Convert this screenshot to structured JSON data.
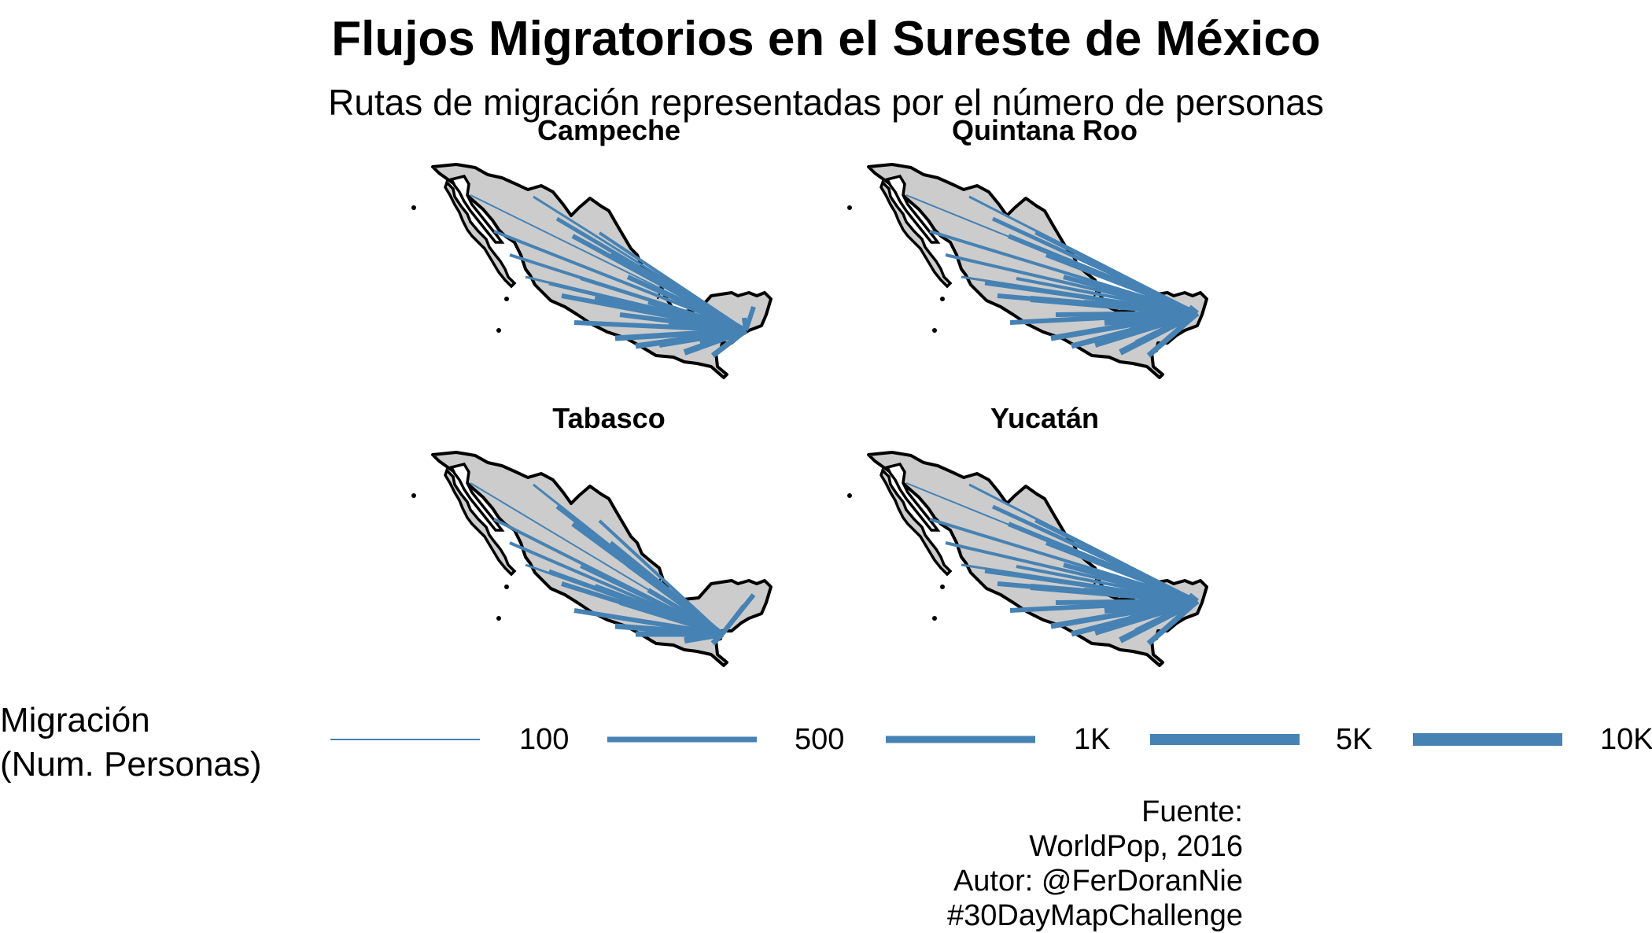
{
  "title": "Flujos Migratorios en el Sureste de México",
  "subtitle": "Rutas de migración representadas por el número de personas",
  "colors": {
    "flow": "#4682B4",
    "land": "#CCCCCC",
    "border": "#000000",
    "background": "#FFFFFF"
  },
  "panels": [
    {
      "name": "Campeche",
      "destination": "Campeche"
    },
    {
      "name": "Quintana Roo",
      "destination": "Quintana Roo"
    },
    {
      "name": "Tabasco",
      "destination": "Tabasco"
    },
    {
      "name": "Yucatán",
      "destination": "Yucatán"
    }
  ],
  "legend": {
    "title_line1": "Migración",
    "title_line2": "(Num. Personas)",
    "items": [
      {
        "label": "100",
        "value": 100
      },
      {
        "label": "500",
        "value": 500
      },
      {
        "label": "1K",
        "value": 1000
      },
      {
        "label": "5K",
        "value": 5000
      },
      {
        "label": "10K",
        "value": 10000
      }
    ]
  },
  "caption": {
    "line1": "Fuente:",
    "line2": "WorldPop, 2016",
    "line3": "Autor:  @FerDoranNie",
    "line4": "#30DayMapChallenge"
  }
}
